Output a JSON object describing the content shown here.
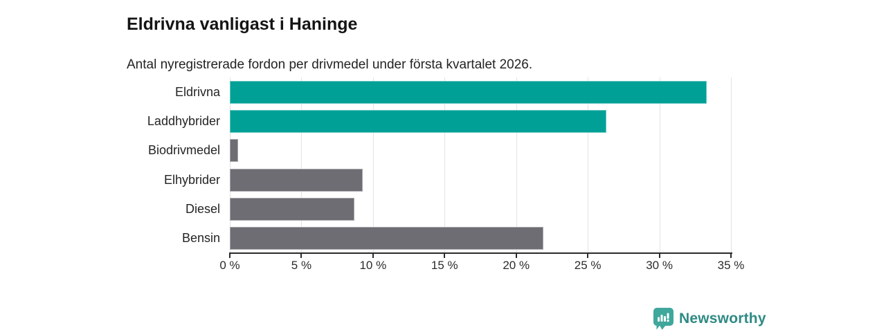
{
  "header": {
    "title": "Eldrivna vanligast i Haninge",
    "subtitle": "Antal nyregistrerade fordon per drivmedel under första kvartalet 2026."
  },
  "chart_data": {
    "type": "bar",
    "orientation": "horizontal",
    "title": "Eldrivna vanligast i Haninge",
    "subtitle": "Antal nyregistrerade fordon per drivmedel under första kvartalet 2026.",
    "categories": [
      "Eldrivna",
      "Laddhybrider",
      "Biodrivmedel",
      "Elhybrider",
      "Diesel",
      "Bensin"
    ],
    "values": [
      33.3,
      26.3,
      0.6,
      9.3,
      8.7,
      21.9
    ],
    "unit": "%",
    "xlim": [
      0,
      35
    ],
    "x_ticks": [
      0,
      5,
      10,
      15,
      20,
      25,
      30,
      35
    ],
    "x_tick_labels": [
      "0 %",
      "5 %",
      "10 %",
      "15 %",
      "20 %",
      "25 %",
      "30 %",
      "35 %"
    ],
    "grid": true,
    "legend": "none",
    "bar_colors": [
      "#00A096",
      "#00A096",
      "#6E6D73",
      "#6E6D73",
      "#6E6D73",
      "#6E6D73"
    ],
    "highlight_color": "#00A096",
    "base_color": "#6E6D73",
    "gridline_color": "#e3e3e3",
    "axis_color": "#2b2b2b"
  },
  "footer": {
    "brand": "Newsworthy",
    "brand_color": "#2E8A84",
    "icon_color": "#3FA79C",
    "icon": "newsworthy-speech-bubble-bar-chart-icon"
  }
}
